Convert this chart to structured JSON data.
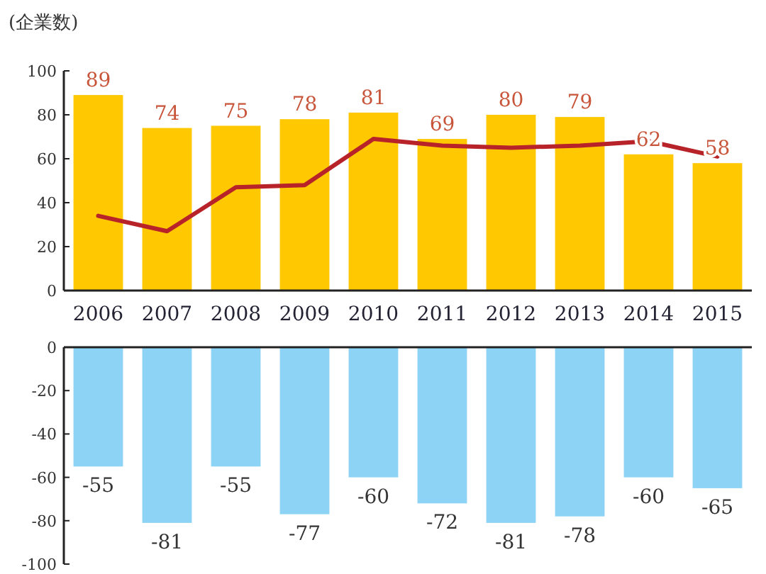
{
  "chart_data": [
    {
      "type": "bar",
      "ylabel": "(企業数)",
      "categories": [
        "2006",
        "2007",
        "2008",
        "2009",
        "2010",
        "2011",
        "2012",
        "2013",
        "2014",
        "2015"
      ],
      "ylim": [
        0,
        100
      ],
      "yticks": [
        0,
        20,
        40,
        60,
        80,
        100
      ],
      "series": [
        {
          "color": "#ffc800",
          "values": [
            89,
            74,
            75,
            78,
            81,
            69,
            80,
            79,
            62,
            58
          ],
          "value_labels": [
            "89",
            "74",
            "75",
            "78",
            "81",
            "69",
            "80",
            "79",
            "62",
            "58"
          ]
        },
        {
          "type": "line",
          "color": "#b8232a",
          "values": [
            34,
            27,
            47,
            48,
            69,
            66,
            65,
            66,
            68,
            61
          ]
        }
      ]
    },
    {
      "type": "bar",
      "categories": [
        "2006",
        "2007",
        "2008",
        "2009",
        "2010",
        "2011",
        "2012",
        "2013",
        "2014",
        "2015"
      ],
      "ylim": [
        -100,
        0
      ],
      "yticks": [
        0,
        -20,
        -40,
        -60,
        -80,
        -100
      ],
      "tick_labels": "y",
      "data_labels": true,
      "series": [
        {
          "color": "#8dd3f5",
          "values": [
            -55,
            -81,
            -55,
            -77,
            -60,
            -72,
            -81,
            -78,
            -60,
            -65
          ]
        }
      ]
    }
  ]
}
